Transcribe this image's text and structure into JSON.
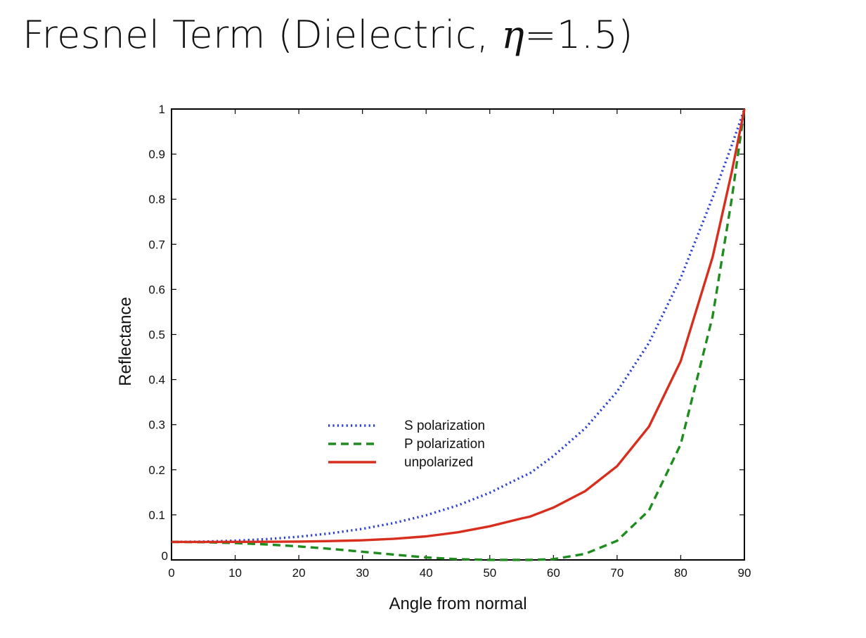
{
  "slide": {
    "title_prefix": "Fresnel Term (Dielectric, ",
    "title_symbol": "η",
    "title_suffix": "=1.5)"
  },
  "chart_data": {
    "type": "line",
    "title": "Fresnel Term (Dielectric, η=1.5)",
    "xlabel": "Angle from normal",
    "ylabel": "Reflectance",
    "xlim": [
      0,
      90
    ],
    "ylim": [
      0,
      1
    ],
    "xticks": [
      0,
      10,
      20,
      30,
      40,
      50,
      60,
      70,
      80,
      90
    ],
    "yticks": [
      0,
      0.1,
      0.2,
      0.3,
      0.4,
      0.5,
      0.6,
      0.7,
      0.8,
      0.9,
      1
    ],
    "grid": false,
    "legend_position": "center-left",
    "x": [
      0,
      5,
      10,
      15,
      20,
      25,
      30,
      35,
      40,
      45,
      50,
      55,
      56.3,
      60,
      65,
      70,
      75,
      80,
      85,
      88,
      90
    ],
    "series": [
      {
        "name": "S polarization",
        "color": "#2b3fd1",
        "style": "dotted",
        "values": [
          0.04,
          0.0407,
          0.0427,
          0.0462,
          0.0515,
          0.059,
          0.0689,
          0.082,
          0.099,
          0.121,
          0.149,
          0.184,
          0.192,
          0.2304,
          0.292,
          0.3733,
          0.4813,
          0.6253,
          0.8031,
          0.9192,
          1.0
        ]
      },
      {
        "name": "P polarization",
        "color": "#1e8c1e",
        "style": "dashed",
        "values": [
          0.04,
          0.0393,
          0.0374,
          0.0343,
          0.0299,
          0.0245,
          0.0181,
          0.0117,
          0.0055,
          0.0016,
          0.0001,
          0.0002,
          0.0,
          0.0017,
          0.0135,
          0.0424,
          0.1097,
          0.2565,
          0.5393,
          0.7997,
          1.0
        ]
      },
      {
        "name": "unpolarized",
        "color": "#d82e1e",
        "style": "solid",
        "values": [
          0.04,
          0.04,
          0.0401,
          0.0403,
          0.0407,
          0.0418,
          0.0435,
          0.0469,
          0.0522,
          0.0613,
          0.0746,
          0.0921,
          0.096,
          0.1161,
          0.1528,
          0.2079,
          0.2955,
          0.4409,
          0.6712,
          0.8594,
          1.0
        ]
      }
    ]
  }
}
